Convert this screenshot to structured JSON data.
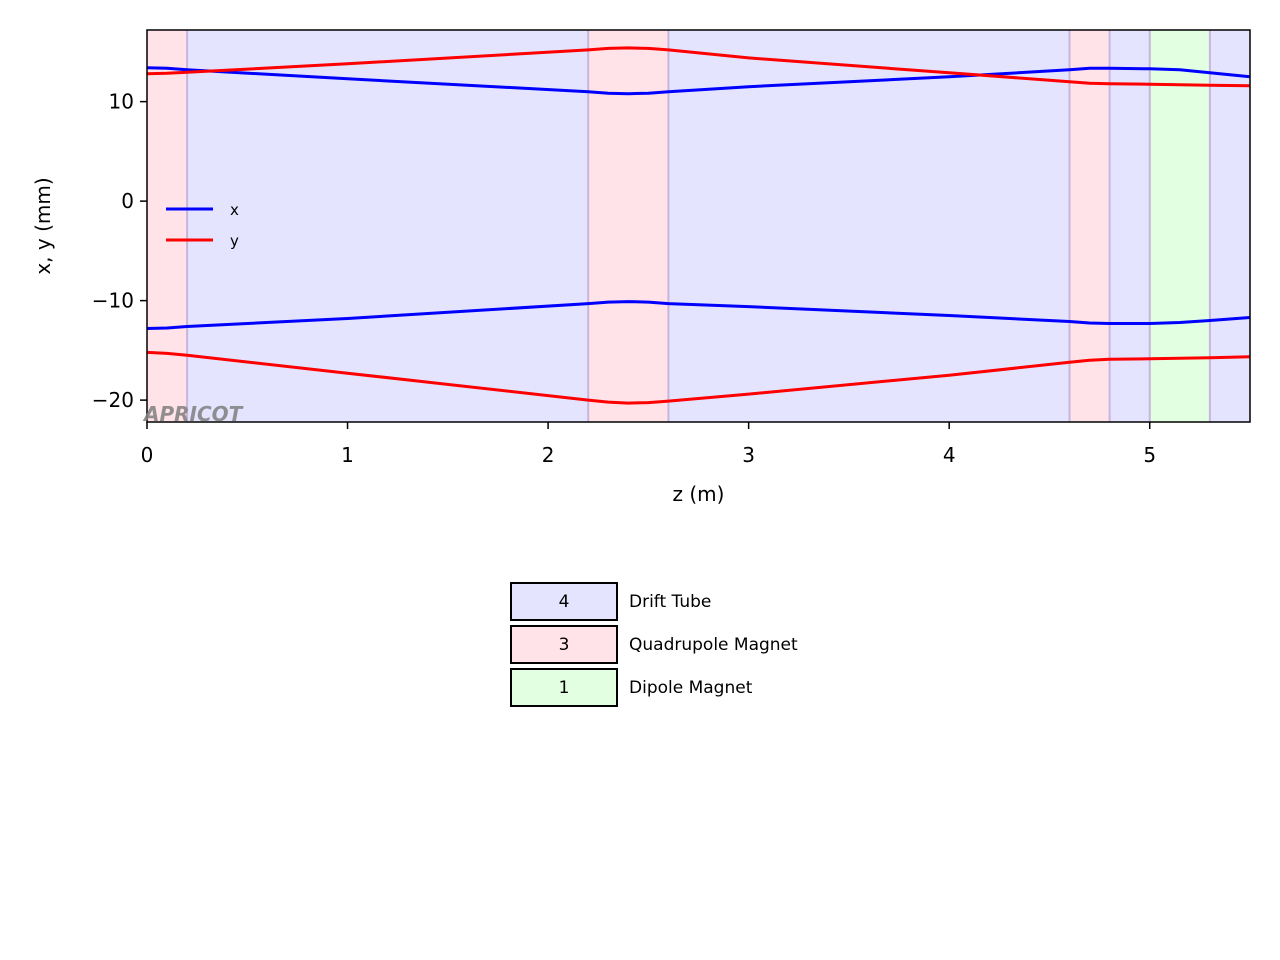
{
  "chart_data": {
    "type": "line",
    "xlabel": "z (m)",
    "ylabel": "x, y (mm)",
    "xlim": [
      0,
      5.5
    ],
    "ylim": [
      -22.2,
      17.2
    ],
    "x_ticks": [
      "0",
      "1",
      "2",
      "3",
      "4",
      "5"
    ],
    "y_ticks": [
      "−20",
      "−10",
      "0",
      "10"
    ],
    "watermark": "APRICOT",
    "legend_position": "center-left",
    "elements": [
      {
        "type": "Drift Tube",
        "z_start": 0.0,
        "z_end": 5.5,
        "color": "#e4e4ff"
      },
      {
        "type": "Quadrupole Magnet",
        "z_start": 0.0,
        "z_end": 0.2,
        "color": "#ffe3e8"
      },
      {
        "type": "Quadrupole Magnet",
        "z_start": 2.2,
        "z_end": 2.6,
        "color": "#ffe3e8"
      },
      {
        "type": "Quadrupole Magnet",
        "z_start": 4.6,
        "z_end": 4.8,
        "color": "#ffe3e8"
      },
      {
        "type": "Dipole Magnet",
        "z_start": 5.0,
        "z_end": 5.3,
        "color": "#e2ffe2"
      }
    ],
    "boundaries": [
      0.2,
      2.2,
      2.6,
      4.6,
      4.8,
      5.0,
      5.3
    ],
    "series": [
      {
        "name": "x",
        "color": "#0000ff",
        "upper": [
          [
            0,
            13.4
          ],
          [
            0.1,
            13.35
          ],
          [
            0.2,
            13.2
          ],
          [
            1,
            12.3
          ],
          [
            2.2,
            11.0
          ],
          [
            2.3,
            10.85
          ],
          [
            2.4,
            10.8
          ],
          [
            2.5,
            10.85
          ],
          [
            2.6,
            11.0
          ],
          [
            3,
            11.5
          ],
          [
            4,
            12.5
          ],
          [
            4.6,
            13.2
          ],
          [
            4.7,
            13.35
          ],
          [
            4.8,
            13.35
          ],
          [
            5,
            13.3
          ],
          [
            5.15,
            13.2
          ],
          [
            5.3,
            12.9
          ],
          [
            5.5,
            12.5
          ]
        ],
        "lower": [
          [
            0,
            -12.8
          ],
          [
            0.1,
            -12.75
          ],
          [
            0.2,
            -12.6
          ],
          [
            1,
            -11.8
          ],
          [
            2.2,
            -10.3
          ],
          [
            2.3,
            -10.15
          ],
          [
            2.4,
            -10.1
          ],
          [
            2.5,
            -10.15
          ],
          [
            2.6,
            -10.3
          ],
          [
            3,
            -10.6
          ],
          [
            4,
            -11.5
          ],
          [
            4.6,
            -12.1
          ],
          [
            4.7,
            -12.25
          ],
          [
            4.8,
            -12.3
          ],
          [
            5,
            -12.3
          ],
          [
            5.15,
            -12.2
          ],
          [
            5.3,
            -12.0
          ],
          [
            5.5,
            -11.7
          ]
        ]
      },
      {
        "name": "y",
        "color": "#ff0000",
        "upper": [
          [
            0,
            12.8
          ],
          [
            0.1,
            12.85
          ],
          [
            0.2,
            12.95
          ],
          [
            1,
            13.8
          ],
          [
            2.2,
            15.2
          ],
          [
            2.3,
            15.35
          ],
          [
            2.4,
            15.4
          ],
          [
            2.5,
            15.35
          ],
          [
            2.6,
            15.2
          ],
          [
            3,
            14.4
          ],
          [
            4,
            12.9
          ],
          [
            4.6,
            12.0
          ],
          [
            4.7,
            11.85
          ],
          [
            4.8,
            11.8
          ],
          [
            5,
            11.75
          ],
          [
            5.3,
            11.65
          ],
          [
            5.5,
            11.6
          ]
        ],
        "lower": [
          [
            0,
            -15.2
          ],
          [
            0.1,
            -15.3
          ],
          [
            0.2,
            -15.5
          ],
          [
            1,
            -17.3
          ],
          [
            2.2,
            -20.0
          ],
          [
            2.3,
            -20.2
          ],
          [
            2.4,
            -20.3
          ],
          [
            2.5,
            -20.25
          ],
          [
            2.6,
            -20.1
          ],
          [
            3,
            -19.4
          ],
          [
            4,
            -17.5
          ],
          [
            4.6,
            -16.2
          ],
          [
            4.7,
            -16.0
          ],
          [
            4.8,
            -15.9
          ],
          [
            5,
            -15.85
          ],
          [
            5.3,
            -15.75
          ],
          [
            5.5,
            -15.65
          ]
        ]
      }
    ]
  },
  "element_table": [
    {
      "count": "4",
      "label": "Drift Tube",
      "color": "#e4e4ff"
    },
    {
      "count": "3",
      "label": "Quadrupole Magnet",
      "color": "#ffe3e8"
    },
    {
      "count": "1",
      "label": "Dipole Magnet",
      "color": "#e2ffe2"
    }
  ]
}
